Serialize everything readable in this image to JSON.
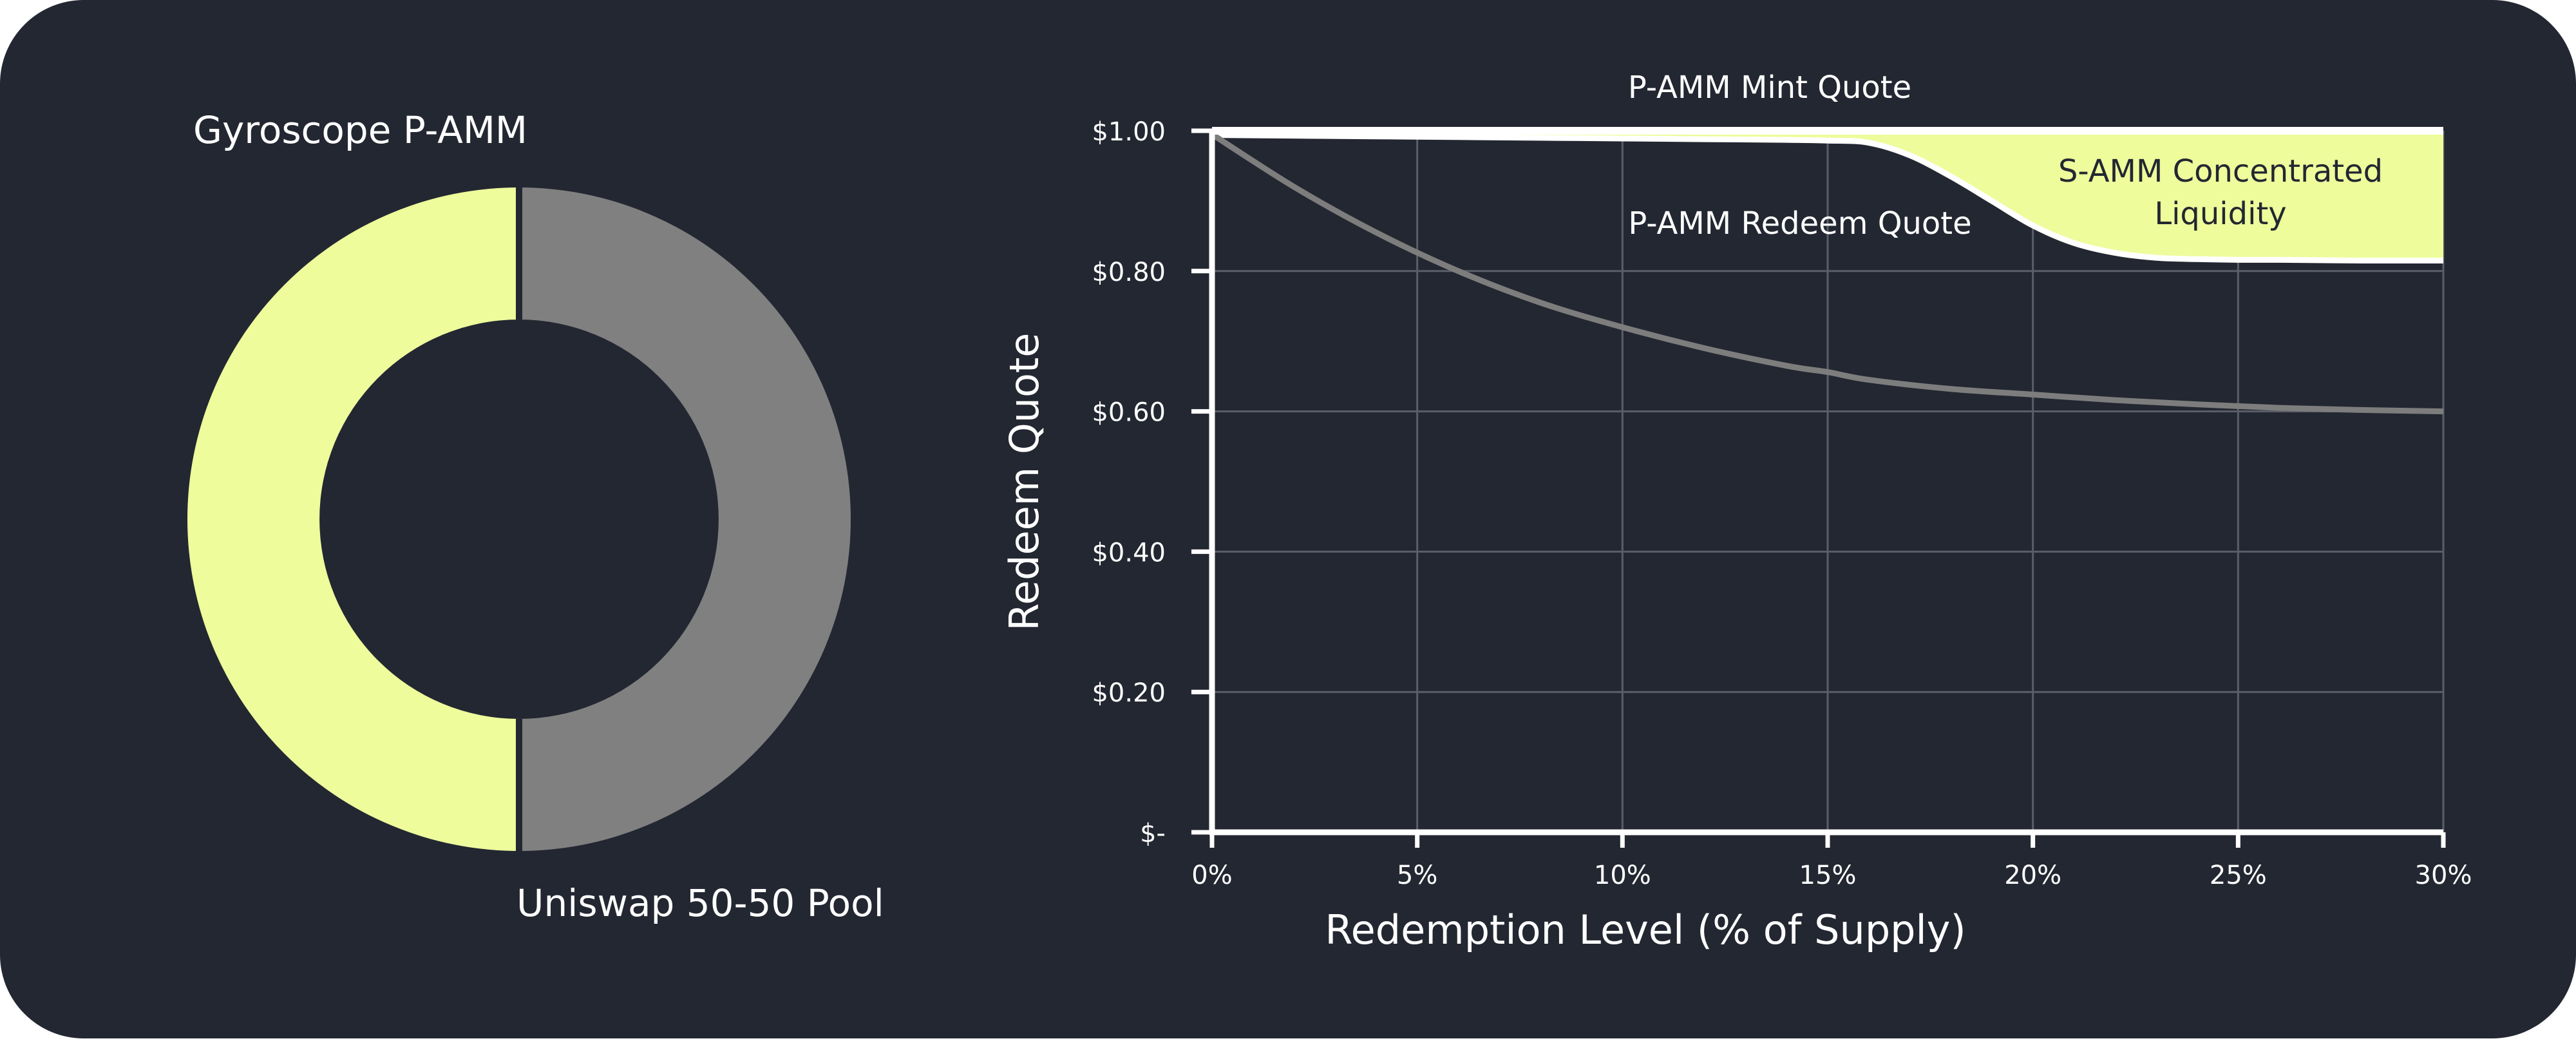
{
  "colors": {
    "background": "#232731",
    "accent": "#eefc9c",
    "gray": "#808080",
    "curve_gray": "#7d7d7d",
    "grid": "#5a5e68",
    "axis": "#ffffff",
    "text": "#ffffff",
    "dark_text": "#232731"
  },
  "chart_data": [
    {
      "type": "pie",
      "style": "donut",
      "slices": [
        {
          "label": "Gyroscope P-AMM",
          "value": 50,
          "color": "#eefc9c"
        },
        {
          "label": "Uniswap 50-50 Pool",
          "value": 50,
          "color": "#808080"
        }
      ]
    },
    {
      "type": "line",
      "title": "P-AMM Mint Quote",
      "xlabel": "Redemption Level (% of Supply)",
      "ylabel": "Redeem Quote",
      "xlim": [
        0,
        30
      ],
      "ylim": [
        0,
        1.0
      ],
      "xticks": [
        0,
        5,
        10,
        15,
        20,
        25,
        30
      ],
      "xtick_labels": [
        "0%",
        "5%",
        "10%",
        "15%",
        "20%",
        "25%",
        "30%"
      ],
      "yticks": [
        0,
        0.2,
        0.4,
        0.6,
        0.8,
        1.0
      ],
      "ytick_labels": [
        "$-",
        "$0.20",
        "$0.40",
        "$0.60",
        "$0.80",
        "$1.00"
      ],
      "grid": true,
      "series": [
        {
          "name": "P-AMM Redeem Quote",
          "color": "#eefc9c",
          "x": [
            0,
            2,
            4,
            6,
            8,
            10,
            12,
            14,
            15,
            16,
            17,
            18,
            19,
            20,
            21,
            22,
            23,
            24,
            25,
            26,
            28,
            30
          ],
          "y": [
            0.994,
            0.993,
            0.992,
            0.991,
            0.99,
            0.989,
            0.988,
            0.987,
            0.986,
            0.983,
            0.965,
            0.935,
            0.9,
            0.865,
            0.84,
            0.826,
            0.819,
            0.817,
            0.816,
            0.816,
            0.815,
            0.815
          ]
        },
        {
          "name": "",
          "color": "#7d7d7d",
          "x": [
            0,
            2,
            4,
            6,
            8,
            10,
            12,
            14,
            15,
            16,
            18,
            20,
            22,
            24,
            26,
            28,
            30
          ],
          "y": [
            0.995,
            0.92,
            0.855,
            0.8,
            0.755,
            0.72,
            0.69,
            0.665,
            0.656,
            0.645,
            0.632,
            0.624,
            0.616,
            0.61,
            0.605,
            0.602,
            0.6
          ]
        }
      ],
      "shaded_region": {
        "label": "S-AMM Concentrated Liquidity",
        "label_lines": [
          "S-AMM Concentrated",
          "Liquidity"
        ],
        "upper_y": 1.0,
        "color": "#eefc9c"
      },
      "annotations": [
        "P-AMM Redeem Quote"
      ]
    }
  ],
  "labels": {
    "donut_top": "Gyroscope P-AMM",
    "donut_bottom": "Uniswap 50-50 Pool",
    "line_title": "P-AMM Mint Quote",
    "redeem_label": "P-AMM Redeem Quote",
    "samm_line1": "S-AMM Concentrated",
    "samm_line2": "Liquidity",
    "xlabel": "Redemption Level (% of Supply)",
    "ylabel": "Redeem Quote"
  }
}
